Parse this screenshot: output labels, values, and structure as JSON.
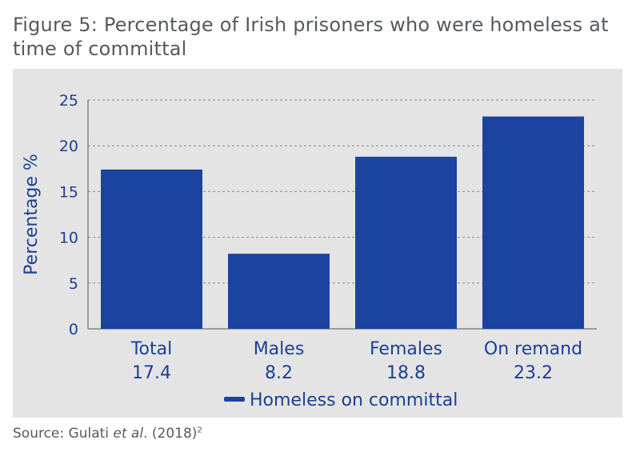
{
  "title": "Figure 5: Percentage of Irish prisoners who were homeless at time of committal",
  "source": {
    "prefix": "Source: Gulati ",
    "italic": "et al",
    "suffix": ". (2018)",
    "superscript": "2"
  },
  "colors": {
    "bar": "#1b44a0",
    "text": "#1b3f97",
    "panel": "#e4e4e4",
    "grid": "#8a8a8a"
  },
  "chart_data": {
    "type": "bar",
    "categories": [
      "Total",
      "Males",
      "Females",
      "On remand"
    ],
    "values": [
      17.4,
      8.2,
      18.8,
      23.2
    ],
    "value_labels": [
      "17.4",
      "8.2",
      "18.8",
      "23.2"
    ],
    "series": [
      {
        "name": "Homeless on committal",
        "values": [
          17.4,
          8.2,
          18.8,
          23.2
        ]
      }
    ],
    "ylabel": "Percentage %",
    "xlabel": "",
    "ylim": [
      0,
      25
    ],
    "yticks": [
      0,
      5,
      10,
      15,
      20,
      25
    ],
    "grid": "horizontal dashed",
    "legend": "bottom-center"
  }
}
